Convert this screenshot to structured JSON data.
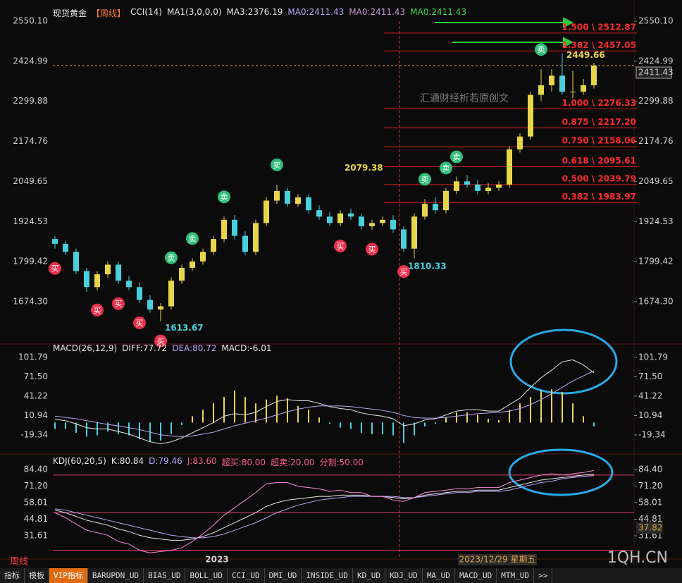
{
  "chart_data": [
    {
      "type": "candlestick",
      "title_items": [
        {
          "text": "现货黄金",
          "color": "#e8e8e8"
        },
        {
          "text": "【周线】",
          "color": "#ff7a3a"
        },
        {
          "text": "CCI(14)",
          "color": "#e8e8e8"
        },
        {
          "text": "MA1(3,0,0,0)",
          "color": "#e8e8e8"
        },
        {
          "text": "MA3:2376.19",
          "color": "#e8e8e8"
        },
        {
          "text": "MA0:2411.43",
          "color": "#b9a6ff"
        },
        {
          "text": "MA0:2411.43",
          "color": "#c79bd6"
        },
        {
          "text": "MA0:2411.43",
          "color": "#3ed64a"
        }
      ],
      "ylim": [
        1548.9,
        2572.1
      ],
      "yticks": [
        {
          "value": 2550.1,
          "label": "2550.10"
        },
        2424.99,
        2299.88,
        2174.76,
        2049.65,
        1924.53,
        1799.42,
        {
          "value": 1674.3,
          "label": "1674.30"
        }
      ],
      "open": [
        1870,
        1855,
        1830,
        1770,
        1720,
        1760,
        1790,
        1740,
        1720,
        1680,
        1650,
        1660,
        1740,
        1780,
        1800,
        1830,
        1870,
        1930,
        1880,
        1830,
        1920,
        1990,
        2020,
        1980,
        2000,
        1960,
        1940,
        1920,
        1950,
        1940,
        1910,
        1920,
        1930,
        1900,
        1840,
        1940,
        1980,
        1960,
        2020,
        2050,
        2040,
        2020,
        2030,
        2040,
        2150,
        2190,
        2320,
        2350,
        2380,
        2330,
        2330,
        2350
      ],
      "high": [
        1880,
        1865,
        1840,
        1780,
        1770,
        1800,
        1800,
        1755,
        1735,
        1695,
        1670,
        1750,
        1790,
        1810,
        1840,
        1880,
        1940,
        1945,
        1895,
        1930,
        2000,
        2040,
        2030,
        2010,
        2010,
        1975,
        1955,
        1960,
        1965,
        1950,
        1930,
        1940,
        1945,
        1910,
        1950,
        1995,
        2000,
        2030,
        2065,
        2070,
        2055,
        2045,
        2050,
        2160,
        2200,
        2330,
        2400,
        2400,
        2449.66,
        2395,
        2370,
        2420
      ],
      "low": [
        1840,
        1820,
        1760,
        1705,
        1710,
        1750,
        1730,
        1710,
        1670,
        1640,
        1613.67,
        1650,
        1730,
        1770,
        1790,
        1820,
        1860,
        1870,
        1820,
        1820,
        1910,
        1980,
        1970,
        1970,
        1950,
        1930,
        1910,
        1910,
        1930,
        1900,
        1900,
        1910,
        1890,
        1830,
        1810.33,
        1930,
        1950,
        1950,
        2010,
        2030,
        2010,
        2010,
        2020,
        2030,
        2140,
        2180,
        2300,
        2330,
        2320,
        2310,
        2320,
        2340
      ],
      "close": [
        1855,
        1830,
        1770,
        1720,
        1760,
        1790,
        1740,
        1720,
        1680,
        1650,
        1660,
        1740,
        1780,
        1800,
        1830,
        1870,
        1930,
        1880,
        1830,
        1920,
        1990,
        2020,
        1980,
        2000,
        1960,
        1940,
        1920,
        1950,
        1940,
        1910,
        1920,
        1930,
        1900,
        1840,
        1940,
        1980,
        1960,
        2020,
        2050,
        2040,
        2020,
        2030,
        2040,
        2150,
        2190,
        2320,
        2350,
        2380,
        2330,
        2330,
        2350,
        2411.43
      ],
      "up_color": "#e8d64a",
      "down_color": "#48d0dc",
      "last_price": 2411.43,
      "fib_levels": [
        {
          "value": 2512.87,
          "label": "1.500 \\ 2512.87"
        },
        {
          "value": 2457.05,
          "label": "1.382 \\ 2457.05"
        },
        {
          "value": 2276.33,
          "label": "1.000 \\ 2276.33"
        },
        {
          "value": 2217.2,
          "label": "0.875 \\ 2217.20"
        },
        {
          "value": 2158.06,
          "label": "0.750 \\ 2158.06"
        },
        {
          "value": 2095.61,
          "label": "0.618 \\ 2095.61"
        },
        {
          "value": 2039.79,
          "label": "0.500 \\ 2039.79"
        },
        {
          "value": 1983.97,
          "label": "0.382 \\ 1983.97"
        }
      ],
      "price_annotations": [
        2079.38,
        1810.33,
        1613.67,
        2449.66
      ],
      "buy_label": "买",
      "sell_label": "卖",
      "watermark": "汇通财经析若原创文",
      "year_label": "2023",
      "cursor_date": "2023/12/29 星期五"
    },
    {
      "type": "macd",
      "title_items": [
        {
          "text": "MACD(26,12,9)",
          "color": "#e8e8e8"
        },
        {
          "text": "DIFF:77.72",
          "color": "#e8e8e8"
        },
        {
          "text": "DEA:80.72",
          "color": "#b9a6ff"
        },
        {
          "text": "MACD:-6.01",
          "color": "#e8e8e8"
        }
      ],
      "ylim": [
        -44.66,
        120.5
      ],
      "yticks": [
        101.79,
        {
          "value": 71.5,
          "label": "71.50"
        },
        41.22,
        10.94,
        -19.34
      ],
      "series": [
        {
          "name": "DIFF",
          "color": "#e8e8e8",
          "values": [
            5,
            3,
            -2,
            -8,
            -10,
            -10,
            -14,
            -18,
            -24,
            -30,
            -33,
            -30,
            -24,
            -16,
            -8,
            0,
            10,
            14,
            12,
            16,
            25,
            33,
            36,
            34,
            34,
            30,
            25,
            22,
            20,
            15,
            12,
            10,
            6,
            -5,
            -2,
            4,
            6,
            12,
            18,
            20,
            20,
            18,
            18,
            28,
            38,
            55,
            70,
            82,
            95,
            98,
            90,
            77.72
          ]
        },
        {
          "name": "DEA",
          "color": "#b9a6ff",
          "values": [
            10,
            8,
            6,
            3,
            0,
            -3,
            -5,
            -8,
            -11,
            -15,
            -19,
            -21,
            -22,
            -21,
            -18,
            -15,
            -10,
            -5,
            -1,
            3,
            7,
            12,
            17,
            21,
            24,
            26,
            26,
            26,
            25,
            23,
            21,
            19,
            16,
            11,
            8,
            7,
            7,
            8,
            10,
            12,
            14,
            15,
            16,
            18,
            22,
            28,
            36,
            45,
            55,
            65,
            73,
            80.72
          ]
        }
      ],
      "histogram": [
        -10,
        -10,
        -16,
        -22,
        -20,
        -14,
        -18,
        -20,
        -26,
        -30,
        -28,
        -18,
        -4,
        10,
        20,
        30,
        40,
        50,
        40,
        30,
        36,
        42,
        38,
        26,
        20,
        8,
        -2,
        -8,
        -10,
        -16,
        -18,
        -18,
        -20,
        -32,
        -20,
        -6,
        -2,
        8,
        16,
        16,
        12,
        6,
        4,
        20,
        30,
        40,
        50,
        52,
        48,
        30,
        10,
        -6.01
      ]
    },
    {
      "type": "kdj",
      "title_items": [
        {
          "text": "KDJ(60,20,5)",
          "color": "#e8e8e8"
        },
        {
          "text": "K:80.84",
          "color": "#e8e8e8"
        },
        {
          "text": "D:79.46",
          "color": "#b9a6ff"
        },
        {
          "text": "J:83.60",
          "color": "#ff5c8a"
        },
        {
          "text": "超买:80.00",
          "color": "#ff5c8a"
        },
        {
          "text": "超卖:20.00",
          "color": "#ff5c8a"
        },
        {
          "text": "分割:50.00",
          "color": "#ff5c8a"
        }
      ],
      "ylim": [
        14.75,
        94.51
      ],
      "yticks": [
        {
          "value": 84.4,
          "label": "84.40"
        },
        {
          "value": 71.2,
          "label": "71.20"
        },
        58.01,
        44.81,
        31.61
      ],
      "level_lines": [
        80,
        50,
        20
      ],
      "cursor_value": 37.82,
      "series": [
        {
          "name": "K",
          "color": "#e8e8e8",
          "values": [
            52,
            50,
            47,
            44,
            42,
            40,
            37,
            35,
            32,
            30,
            29,
            28,
            28,
            29,
            31,
            34,
            38,
            42,
            46,
            50,
            55,
            58,
            60,
            61,
            62,
            63,
            63,
            64,
            64,
            64,
            63,
            63,
            62,
            61,
            62,
            64,
            65,
            66,
            67,
            67,
            68,
            68,
            68,
            70,
            72,
            74,
            76,
            77,
            78,
            79,
            80,
            80.84
          ]
        },
        {
          "name": "D",
          "color": "#b9a6ff",
          "values": [
            53,
            52,
            50,
            48,
            46,
            44,
            42,
            40,
            38,
            36,
            34,
            32,
            31,
            30,
            30,
            31,
            33,
            36,
            39,
            42,
            46,
            50,
            53,
            56,
            58,
            60,
            61,
            62,
            63,
            63,
            63,
            63,
            63,
            62,
            62,
            63,
            64,
            65,
            66,
            66,
            67,
            67,
            67,
            68,
            70,
            72,
            74,
            75,
            77,
            78,
            79,
            79.46
          ]
        },
        {
          "name": "J",
          "color": "#ff8ad8",
          "values": [
            50,
            46,
            41,
            36,
            34,
            32,
            27,
            25,
            20,
            18,
            19,
            20,
            22,
            27,
            33,
            40,
            48,
            54,
            60,
            66,
            73,
            74,
            74,
            71,
            70,
            69,
            67,
            68,
            66,
            66,
            63,
            63,
            60,
            59,
            62,
            66,
            67,
            68,
            69,
            69,
            70,
            70,
            70,
            74,
            76,
            78,
            80,
            81,
            80,
            81,
            82,
            83.6
          ]
        }
      ]
    }
  ],
  "footer": {
    "period": "周线",
    "site": "1QH.CN",
    "tabs": [
      "指标",
      "模板",
      "VIP指标",
      "BARUPDN_UD",
      "BIAS_UD",
      "BOLL_UD",
      "CCI_UD",
      "DMI_UD",
      "INSIDE_UD",
      "KD_UD",
      "KDJ_UD",
      "MA_UD",
      "MACD_UD",
      "MTM_UD",
      ">>"
    ]
  }
}
